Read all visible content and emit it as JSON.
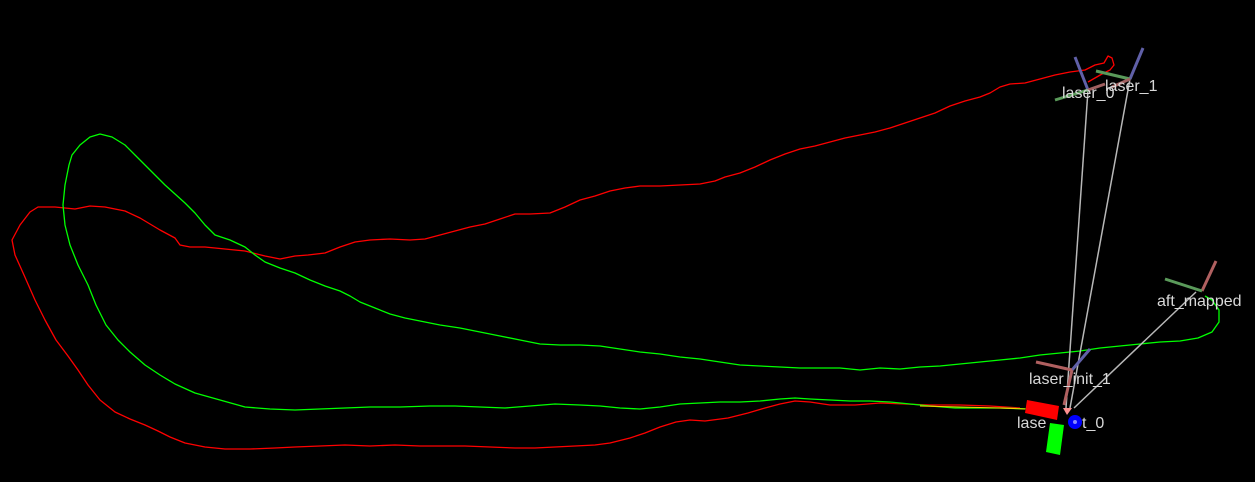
{
  "viewport": {
    "background": "#000000"
  },
  "trajectories": {
    "primary": {
      "color": "#ff0000"
    },
    "secondary": {
      "color": "#00ff00"
    }
  },
  "frames": {
    "laser_0": "laser_0",
    "laser_1": "laser_1",
    "aft_mapped": "aft_mapped",
    "laser_init_1": "laser_init_1",
    "laser_init_0_prefix": "lase",
    "laser_init_0_suffix": "t_0"
  },
  "tf_link_color": "#b8b8b8",
  "axis_colors": {
    "x": "#ff0000",
    "y": "#00ff00",
    "z": "#0000ff"
  }
}
